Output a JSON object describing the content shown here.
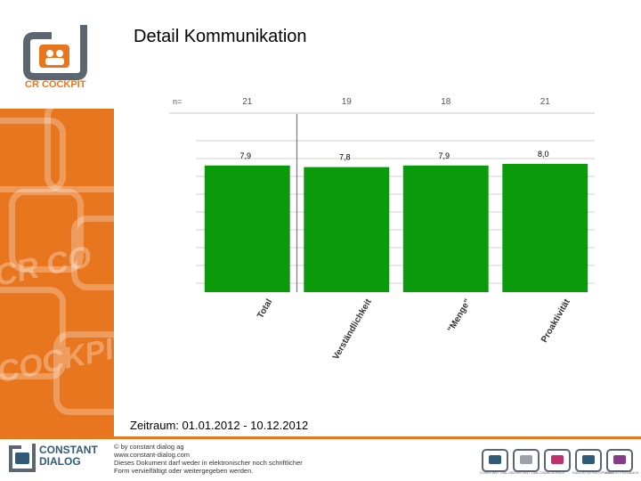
{
  "title": "Detail Kommunikation",
  "logo": {
    "text": "CR COCKPIT"
  },
  "period": "Zeitraum: 01.01.2012 - 10.12.2012",
  "footer": {
    "brand_line1": "CONSTANT",
    "brand_line2": "DIALOG",
    "lines": [
      "© by constant dialog ag",
      "www.constant-dialog.com",
      "Dieses Dokument darf weder in elektronischer noch schriftlicher",
      "Form vervielfältigt oder weitergegeben werden."
    ],
    "logo_labels": [
      "CONSTANT DIALOG",
      "CONSTANT DIALOG",
      "VALUEPASS",
      "DIALOG DEVELOPMENT",
      "DIALOG FEEDBACK"
    ]
  },
  "chart_data": {
    "type": "bar",
    "n_label": "n=",
    "categories": [
      "Total",
      "Verständlichkeit",
      "\"Menge\"",
      "Proaktivität"
    ],
    "n": [
      21,
      19,
      18,
      21
    ],
    "values": [
      7.9,
      7.8,
      7.9,
      8.0
    ],
    "value_labels": [
      "7,9",
      "7,8",
      "7,9",
      "8,0"
    ],
    "ylim": [
      0,
      10
    ],
    "grid": true,
    "bar_color": "#0b9a0b"
  }
}
